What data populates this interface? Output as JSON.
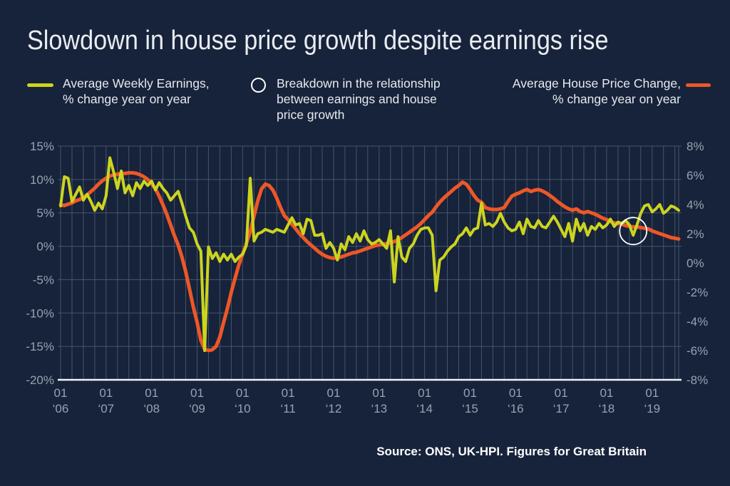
{
  "header": {
    "title": "Slowdown in house price growth despite earnings rise"
  },
  "legend": {
    "earnings": {
      "label_line1": "Average Weekly Earnings,",
      "label_line2": "% change year on year",
      "color": "#ccd41f"
    },
    "breakdown": {
      "label": "Breakdown in the relationship between earnings and house price growth",
      "marker": "white-outline-circle"
    },
    "house": {
      "label_line1": "Average House Price Change,",
      "label_line2": "% change year on year",
      "color": "#ee5727"
    }
  },
  "source": "Source: ONS, UK-HPI. Figures for Great Britain",
  "chart_data": {
    "type": "line",
    "x_unit": "month",
    "x_start": "2006-01",
    "x_end": "2019-08",
    "grid": {
      "vertical": "quarterly",
      "horizontal": "left-axis-ticks",
      "baseline_color": "#f2f4f7",
      "grid_color": "#4f5e74"
    },
    "x_tick_labels": [
      [
        "01",
        "‘06"
      ],
      [
        "01",
        "‘07"
      ],
      [
        "01",
        "‘08"
      ],
      [
        "01",
        "‘09"
      ],
      [
        "01",
        "‘10"
      ],
      [
        "01",
        "‘11"
      ],
      [
        "01",
        "‘12"
      ],
      [
        "01",
        "‘13"
      ],
      [
        "01",
        "‘14"
      ],
      [
        "01",
        "‘15"
      ],
      [
        "01",
        "‘16"
      ],
      [
        "01",
        "‘17"
      ],
      [
        "01",
        "‘18"
      ],
      [
        "01",
        "‘19"
      ]
    ],
    "left_axis": {
      "ticks": [
        "15%",
        "10%",
        "5%",
        "0%",
        "-5%",
        "-10%",
        "-15%",
        "-20%"
      ],
      "range": [
        15,
        -20
      ],
      "series": "Average House Price Change"
    },
    "right_axis": {
      "ticks": [
        "8%",
        "6%",
        "4%",
        "2%",
        "0%",
        "-2%",
        "-4%",
        "-6%",
        "-8%"
      ],
      "range": [
        8,
        -8
      ],
      "series": "Average Weekly Earnings"
    },
    "series": [
      {
        "name": "Average House Price Change, % change year on year",
        "axis": "left",
        "color": "#ee5727",
        "stroke_width": 5,
        "values": [
          6.2,
          6.1,
          6.3,
          6.5,
          6.8,
          7.0,
          7.3,
          7.7,
          8.2,
          8.7,
          9.3,
          9.8,
          10.2,
          10.5,
          10.7,
          10.8,
          10.9,
          10.9,
          11.0,
          11.0,
          10.9,
          10.7,
          10.4,
          10.0,
          9.4,
          8.6,
          7.5,
          6.2,
          4.8,
          3.2,
          1.6,
          0.2,
          -1.6,
          -3.8,
          -6.4,
          -9.1,
          -11.4,
          -14.1,
          -15.4,
          -15.6,
          -15.5,
          -15.0,
          -13.6,
          -11.4,
          -9.3,
          -6.9,
          -4.8,
          -2.8,
          -1.2,
          0.4,
          2.2,
          4.5,
          6.8,
          8.6,
          9.3,
          9.1,
          8.4,
          7.2,
          5.8,
          4.6,
          4.0,
          3.3,
          2.6,
          1.9,
          1.3,
          0.7,
          0.2,
          -0.3,
          -0.8,
          -1.2,
          -1.5,
          -1.7,
          -1.8,
          -1.7,
          -1.6,
          -1.4,
          -1.2,
          -1.0,
          -0.9,
          -0.7,
          -0.5,
          -0.3,
          -0.1,
          0.1,
          0.2,
          0.3,
          0.4,
          0.5,
          0.7,
          1.0,
          1.3,
          1.7,
          2.1,
          2.5,
          2.9,
          3.4,
          4.0,
          4.6,
          5.1,
          5.9,
          6.6,
          7.2,
          7.7,
          8.2,
          8.7,
          9.1,
          9.6,
          9.3,
          8.5,
          7.6,
          6.9,
          6.6,
          5.8,
          5.6,
          5.5,
          5.5,
          5.6,
          5.8,
          6.7,
          7.5,
          7.8,
          8.0,
          8.3,
          8.5,
          8.2,
          8.4,
          8.5,
          8.3,
          8.0,
          7.6,
          7.2,
          6.7,
          6.3,
          5.9,
          5.6,
          5.4,
          5.6,
          5.2,
          5.0,
          5.2,
          5.0,
          4.8,
          4.5,
          4.2,
          4.0,
          3.7,
          3.5,
          3.4,
          3.3,
          3.1,
          3.0,
          2.9,
          2.9,
          2.8,
          2.7,
          2.6,
          2.3,
          2.1,
          1.9,
          1.7,
          1.5,
          1.3,
          1.2,
          1.1
        ]
      },
      {
        "name": "Average Weekly Earnings, % change year on year",
        "axis": "right",
        "color": "#ccd41f",
        "stroke_width": 4,
        "values": [
          3.9,
          5.9,
          5.8,
          4.2,
          4.7,
          5.2,
          4.3,
          4.7,
          4.2,
          3.6,
          4.1,
          3.7,
          4.6,
          7.2,
          6.2,
          5.1,
          6.3,
          4.8,
          5.3,
          4.6,
          5.5,
          5.1,
          5.6,
          5.3,
          5.6,
          5.0,
          5.5,
          5.1,
          4.8,
          4.3,
          4.6,
          4.9,
          4.1,
          3.2,
          2.4,
          2.1,
          1.3,
          0.8,
          -6.0,
          1.1,
          0.3,
          0.7,
          0.1,
          0.6,
          0.2,
          0.6,
          0.1,
          0.4,
          0.6,
          1.2,
          5.8,
          1.5,
          2.0,
          2.1,
          2.3,
          2.2,
          2.1,
          2.3,
          2.2,
          2.1,
          2.6,
          3.1,
          2.6,
          2.7,
          2.0,
          3.0,
          2.9,
          1.9,
          1.9,
          2.0,
          1.0,
          1.4,
          1.0,
          0.2,
          1.3,
          0.9,
          1.8,
          1.4,
          2.0,
          1.5,
          2.2,
          1.6,
          1.3,
          1.4,
          1.6,
          1.3,
          1.0,
          2.2,
          -1.3,
          1.8,
          0.4,
          0.1,
          1.0,
          1.3,
          1.9,
          2.3,
          2.4,
          2.4,
          1.9,
          -1.9,
          0.2,
          0.4,
          0.8,
          1.1,
          1.3,
          1.8,
          2.0,
          2.4,
          1.9,
          2.3,
          2.4,
          4.1,
          2.6,
          2.7,
          2.5,
          2.8,
          3.4,
          2.8,
          2.4,
          2.2,
          2.3,
          2.8,
          2.0,
          3.0,
          2.5,
          2.4,
          2.9,
          2.5,
          2.4,
          2.8,
          3.2,
          2.8,
          2.3,
          1.8,
          2.7,
          1.5,
          3.0,
          2.2,
          2.7,
          1.9,
          2.5,
          2.3,
          2.7,
          2.4,
          2.6,
          3.0,
          2.5,
          2.8,
          2.7,
          2.9,
          2.6,
          1.9,
          2.6,
          3.4,
          3.9,
          4.0,
          3.5,
          3.7,
          4.0,
          3.4,
          3.6,
          3.9,
          3.8,
          3.6
        ]
      }
    ],
    "annotation": {
      "label": "Breakdown in the relationship between earnings and house price growth",
      "month": "2018-08",
      "month_index": 151,
      "circle_color": "#ffffff"
    }
  }
}
